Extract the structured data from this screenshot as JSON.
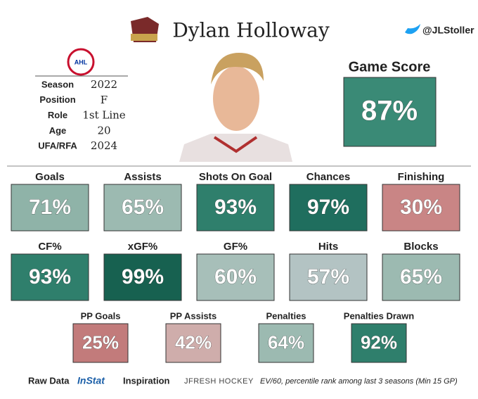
{
  "header": {
    "name": "Dylan Holloway",
    "twitter": "@JLStoller",
    "logo_text": "AHL"
  },
  "info": [
    {
      "label": "Season",
      "value": "2022"
    },
    {
      "label": "Position",
      "value": "F"
    },
    {
      "label": "Role",
      "value": "1st Line"
    },
    {
      "label": "Age",
      "value": "20"
    },
    {
      "label": "UFA/RFA",
      "value": "2024"
    }
  ],
  "game_score": {
    "label": "Game Score",
    "value": "87%",
    "color": "#3a8a76"
  },
  "rows": [
    [
      {
        "label": "Goals",
        "value": "71%",
        "color": "#8fb3a8"
      },
      {
        "label": "Assists",
        "value": "65%",
        "color": "#9cbab1"
      },
      {
        "label": "Shots On Goal",
        "value": "93%",
        "color": "#2f7f6c"
      },
      {
        "label": "Chances",
        "value": "97%",
        "color": "#1f6e5e"
      },
      {
        "label": "Finishing",
        "value": "30%",
        "color": "#c98585"
      }
    ],
    [
      {
        "label": "CF%",
        "value": "93%",
        "color": "#2f7f6c"
      },
      {
        "label": "xGF%",
        "value": "99%",
        "color": "#176150"
      },
      {
        "label": "GF%",
        "value": "60%",
        "color": "#a7bfb9"
      },
      {
        "label": "Hits",
        "value": "57%",
        "color": "#b3c3c3"
      },
      {
        "label": "Blocks",
        "value": "65%",
        "color": "#9cbab1"
      }
    ],
    [
      {
        "label": "PP Goals",
        "value": "25%",
        "color": "#c27b7b"
      },
      {
        "label": "PP Assists",
        "value": "42%",
        "color": "#cfadab"
      },
      {
        "label": "Penalties",
        "value": "64%",
        "color": "#9cbab1"
      },
      {
        "label": "Penalties Drawn",
        "value": "92%",
        "color": "#2f7f6c"
      }
    ]
  ],
  "footer": {
    "raw_data": "Raw Data",
    "source": "InStat",
    "inspiration": "Inspiration",
    "inspiration_source": "JFRESH HOCKEY",
    "note": "EV/60, percentile rank among last 3 seasons (Min 15 GP)"
  }
}
